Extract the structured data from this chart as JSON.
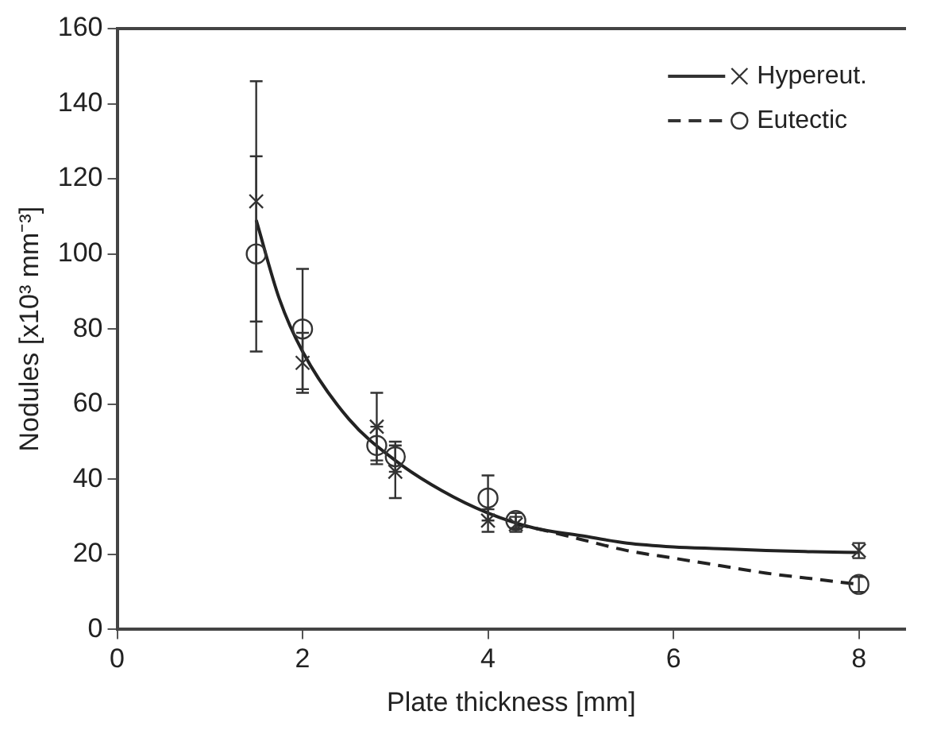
{
  "chart_data": {
    "type": "scatter",
    "xlabel": "Plate thickness [mm]",
    "ylabel": "Nodules [x10³ mm⁻³]",
    "xlim": [
      0,
      8.5
    ],
    "xticks": [
      0,
      2,
      4,
      6,
      8
    ],
    "ylim": [
      0,
      160
    ],
    "yticks": [
      0,
      20,
      40,
      60,
      80,
      100,
      120,
      140,
      160
    ],
    "grid": false,
    "legend": "top right",
    "series": [
      {
        "name": "Hypereut.",
        "marker": "cross",
        "color": "#333333",
        "x": [
          1.5,
          2,
          2.8,
          3,
          4,
          4.3,
          8
        ],
        "values": [
          114,
          71,
          54,
          42,
          29,
          28,
          21
        ],
        "errors": [
          32,
          8,
          9,
          7,
          3,
          2,
          2
        ]
      },
      {
        "name": "Eutectic",
        "marker": "circle",
        "color": "#333333",
        "x": [
          1.5,
          2,
          2.8,
          3,
          4,
          4.3,
          8
        ],
        "values": [
          100,
          80,
          49,
          46,
          35,
          29,
          12
        ],
        "errors": [
          26,
          16,
          5,
          4,
          6,
          2,
          2
        ]
      },
      {
        "type": "line",
        "marker": "none",
        "line_style": "solid",
        "color": "#222222",
        "x": [
          1.5,
          1.75,
          2,
          2.5,
          3,
          3.5,
          4,
          4.5,
          5,
          5.5,
          6,
          6.5,
          7,
          7.5,
          8
        ],
        "values": [
          109,
          88,
          74,
          56,
          45,
          37,
          31,
          27,
          25,
          23,
          22,
          21.5,
          21,
          20.7,
          20.5
        ]
      },
      {
        "type": "line",
        "marker": "none",
        "line_style": "dashed",
        "color": "#222222",
        "x": [
          4.3,
          4.5,
          5,
          5.5,
          6,
          6.5,
          7,
          7.5,
          8
        ],
        "values": [
          28,
          27,
          24,
          21,
          19,
          17,
          15,
          13.5,
          12
        ]
      }
    ]
  }
}
